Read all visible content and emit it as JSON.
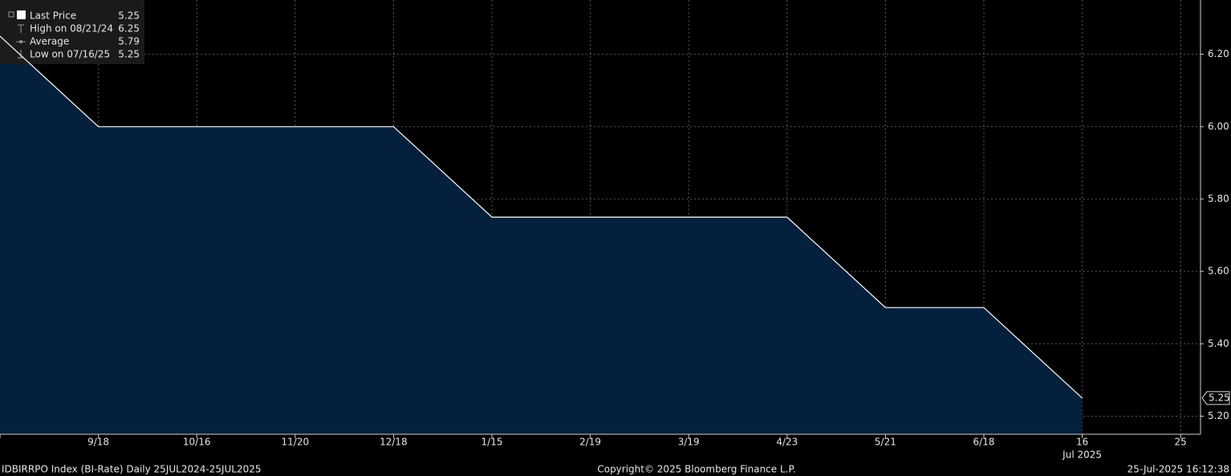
{
  "chart_data": {
    "type": "area",
    "categories": [
      null,
      "9/18",
      "10/16",
      "11/20",
      "12/18",
      "1/15",
      "2/19",
      "3/19",
      "4/23",
      "5/21",
      "6/18",
      "16",
      "25"
    ],
    "x_year_label": "Jul 2025",
    "series": [
      {
        "name": "Last Price",
        "color": "#ffffff",
        "fill": "#04203c",
        "values": [
          6.25,
          6.0,
          6.0,
          6.0,
          6.0,
          5.75,
          5.75,
          5.75,
          5.75,
          5.5,
          5.5,
          5.25,
          null
        ]
      }
    ],
    "ylim": [
      5.15,
      6.35
    ],
    "yticks": [
      {
        "value": 5.2,
        "label": "5.20"
      },
      {
        "value": 5.4,
        "label": "5.40"
      },
      {
        "value": 5.6,
        "label": "5.60"
      },
      {
        "value": 5.8,
        "label": "5.80"
      },
      {
        "value": 6.0,
        "label": "6.00"
      },
      {
        "value": 6.2,
        "label": "6.20"
      }
    ],
    "grid": true,
    "legend_items": [
      {
        "name": "Last Price",
        "value": 5.25
      },
      {
        "name": "High on 08/21/24",
        "value": 6.25
      },
      {
        "name": "Average",
        "value": 5.79
      },
      {
        "name": "Low on 07/16/25",
        "value": 5.25
      }
    ],
    "footer_left": "IDBIRRPO Index (BI-Rate)  Daily 25JUL2024-25JUL2025",
    "footer_center": "Copyright© 2025 Bloomberg Finance L.P.",
    "footer_right": "25-Jul-2025 16:12:38"
  }
}
